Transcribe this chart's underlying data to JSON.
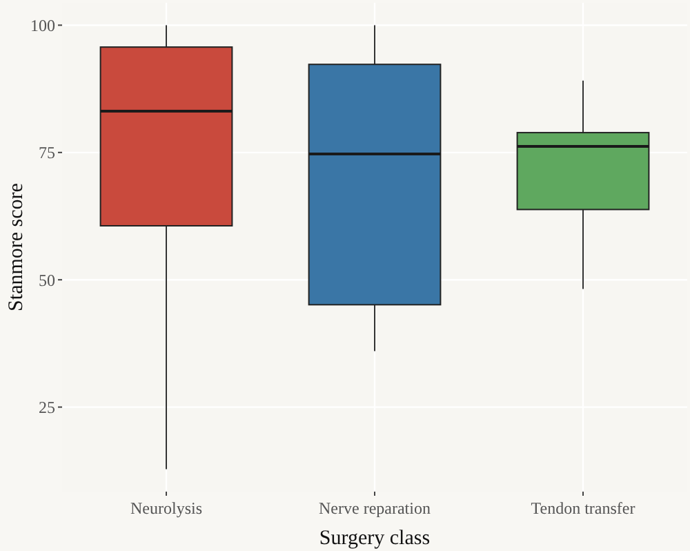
{
  "chart_data": {
    "type": "box",
    "xlabel": "Surgery class",
    "ylabel": "Stanmore score",
    "categories": [
      "Neurolysis",
      "Nerve reparation",
      "Tendon transfer"
    ],
    "colors": [
      "#c94a3d",
      "#3a76a6",
      "#5fa85f"
    ],
    "boxes": [
      {
        "low": 12.8,
        "q1": 60.6,
        "median": 83.1,
        "q3": 95.7,
        "high": 100
      },
      {
        "low": 36,
        "q1": 45.1,
        "median": 74.7,
        "q3": 92.3,
        "high": 100
      },
      {
        "low": 48.2,
        "q1": 63.8,
        "median": 76.2,
        "q3": 78.9,
        "high": 89.1
      }
    ],
    "ylim": [
      8.4,
      104.4
    ],
    "yticks": [
      25,
      50,
      75,
      100
    ],
    "grid": true
  }
}
